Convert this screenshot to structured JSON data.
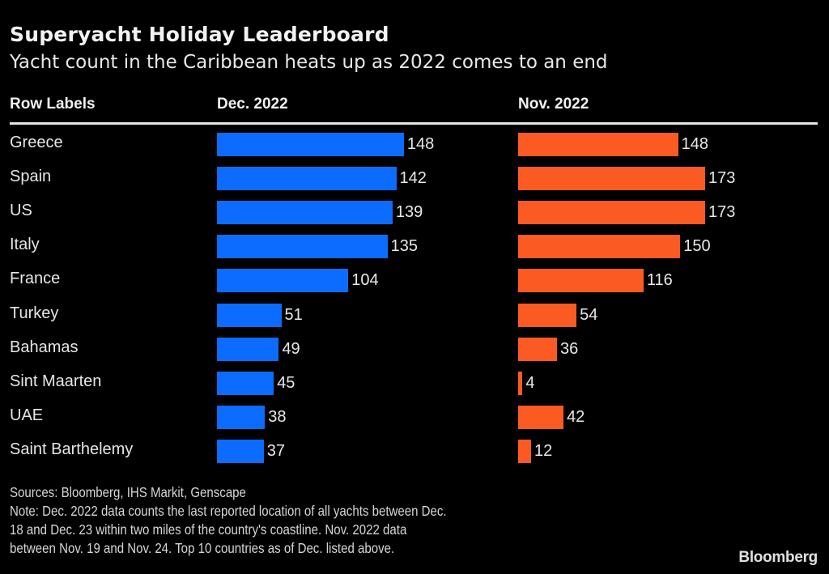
{
  "chart_data": {
    "type": "bar",
    "orientation": "horizontal",
    "title": "Superyacht Holiday Leaderboard",
    "subtitle": "Yacht count in the Caribbean heats up as 2022 comes to an end",
    "row_header": "Row Labels",
    "categories": [
      "Greece",
      "Spain",
      "US",
      "Italy",
      "France",
      "Turkey",
      "Bahamas",
      "Sint Maarten",
      "UAE",
      "Saint Barthelemy"
    ],
    "series": [
      {
        "name": "Dec. 2022",
        "color": "#0b6cff",
        "values": [
          148,
          142,
          139,
          135,
          104,
          51,
          49,
          45,
          38,
          37
        ]
      },
      {
        "name": "Nov. 2022",
        "color": "#fb5b23",
        "values": [
          148,
          173,
          173,
          150,
          116,
          54,
          36,
          4,
          42,
          12
        ]
      }
    ],
    "grid": false,
    "legend": "column-headers"
  },
  "footer": {
    "sources": "Sources: Bloomberg, IHS Markit, Genscape",
    "note_lines": [
      "Note: Dec. 2022 data counts the last reported location of all yachts between Dec.",
      "18 and Dec. 23 within two miles of the country's coastline. Nov. 2022 data",
      "between Nov. 19 and Nov. 24. Top 10 countries as of Dec. listed above."
    ],
    "brand": "Bloomberg"
  }
}
